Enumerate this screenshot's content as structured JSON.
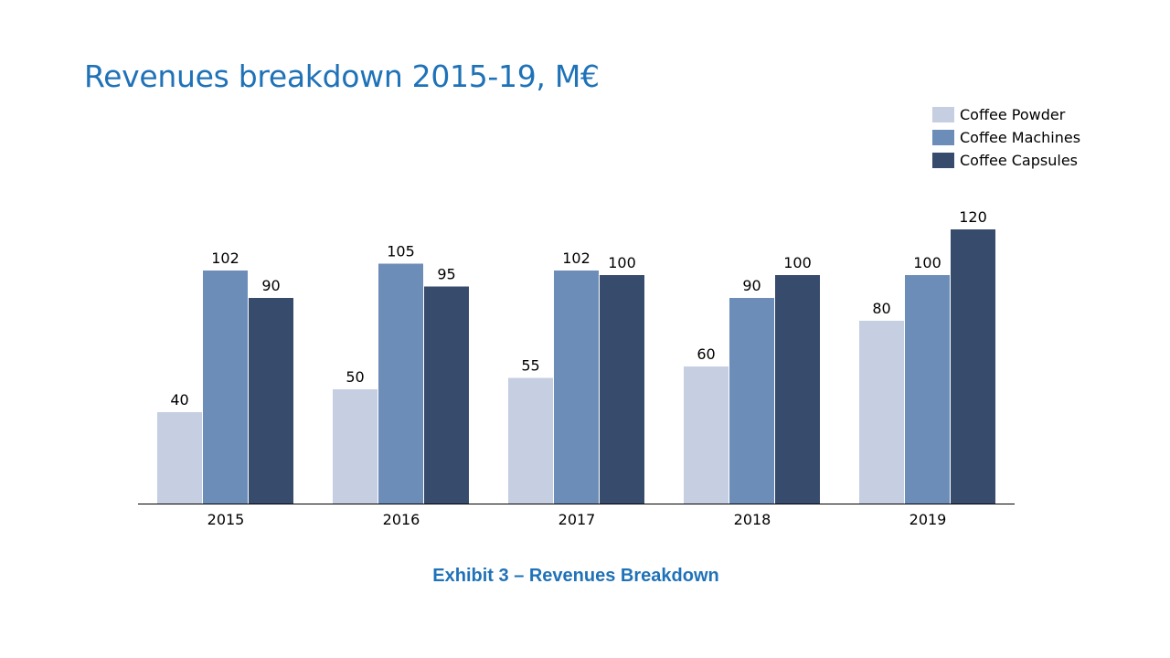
{
  "title": "Revenues breakdown 2015-19, M€",
  "caption": "Exhibit 3 – Revenues Breakdown",
  "colors": {
    "title": "#1f72b8",
    "caption": "#1f72b8",
    "axis": "#000000"
  },
  "chart_data": {
    "type": "bar",
    "categories": [
      "2015",
      "2016",
      "2017",
      "2018",
      "2019"
    ],
    "series": [
      {
        "name": "Coffee Powder",
        "color": "#c5cfe1",
        "values": [
          40,
          50,
          55,
          60,
          80
        ]
      },
      {
        "name": "Coffee Machines",
        "color": "#6d8db9",
        "values": [
          102,
          105,
          102,
          90,
          100
        ]
      },
      {
        "name": "Coffee Capsules",
        "color": "#374b6c",
        "values": [
          90,
          95,
          100,
          100,
          120
        ]
      }
    ],
    "ylim": [
      0,
      120
    ],
    "grid": false,
    "data_labels": true,
    "legend_position": "top-right"
  }
}
